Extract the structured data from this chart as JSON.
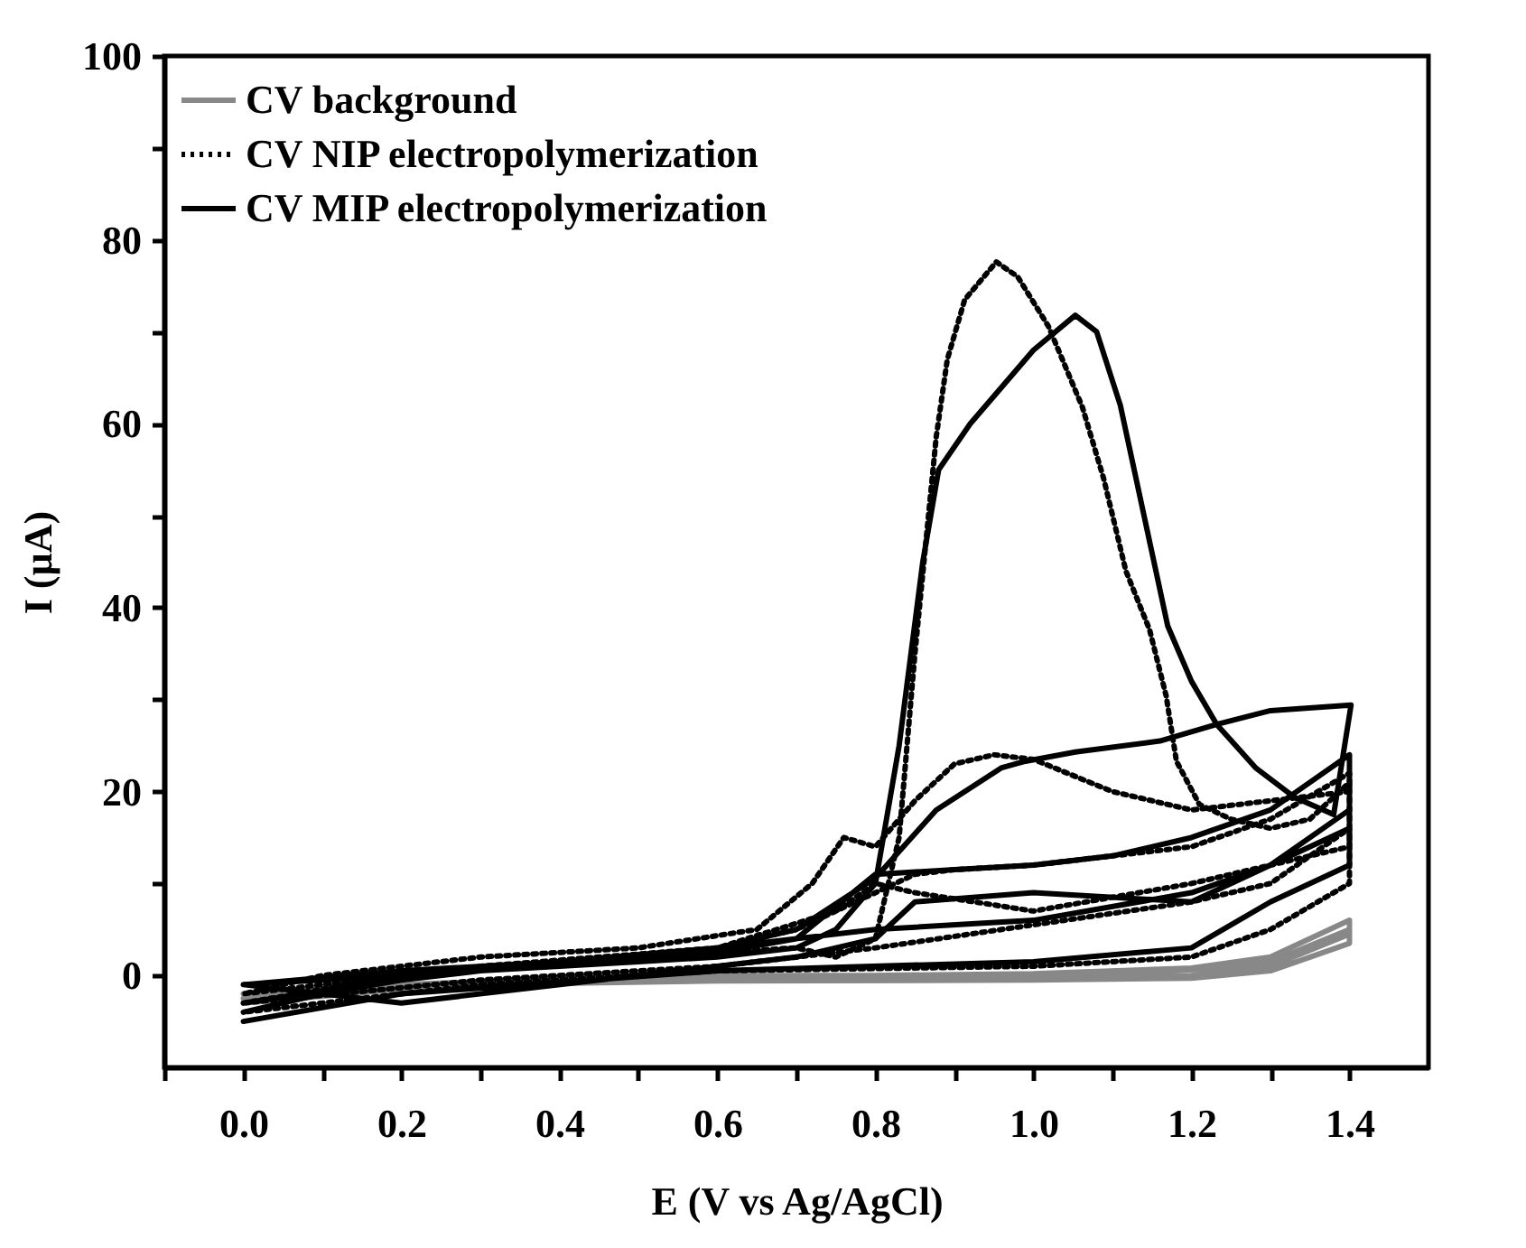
{
  "chart_data": {
    "type": "line",
    "xlabel": "E (V vs Ag/AgCl)",
    "ylabel": "I (µA)",
    "xlim": [
      -0.1,
      1.5
    ],
    "ylim": [
      -10,
      100
    ],
    "xticks": [
      {
        "value": -0.1,
        "label": null
      },
      {
        "value": 0,
        "label": "0.0"
      },
      {
        "value": 0.1,
        "label": null
      },
      {
        "value": 0.2,
        "label": "0.2"
      },
      {
        "value": 0.3,
        "label": null
      },
      {
        "value": 0.4,
        "label": "0.4"
      },
      {
        "value": 0.5,
        "label": null
      },
      {
        "value": 0.6,
        "label": "0.6"
      },
      {
        "value": 0.7,
        "label": null
      },
      {
        "value": 0.8,
        "label": "0.8"
      },
      {
        "value": 0.9,
        "label": null
      },
      {
        "value": 1.0,
        "label": "1.0"
      },
      {
        "value": 1.1,
        "label": null
      },
      {
        "value": 1.2,
        "label": "1.2"
      },
      {
        "value": 1.3,
        "label": null
      },
      {
        "value": 1.4,
        "label": "1.4"
      }
    ],
    "yticks": [
      0,
      {
        "value": 10,
        "label": null
      },
      20,
      {
        "value": 30,
        "label": null
      },
      40,
      {
        "value": 50,
        "label": null
      },
      60,
      {
        "value": 70,
        "label": null
      },
      80,
      {
        "value": 90,
        "label": null
      },
      100
    ],
    "grid": false,
    "legend": "top left",
    "series": [
      {
        "name": "CV background",
        "color": "#888888",
        "line_style": "solid",
        "x": [
          0,
          0.2,
          0.4,
          0.6,
          0.8,
          1.0,
          1.2,
          1.3,
          1.4,
          1.4,
          1.3,
          1.2,
          1.0,
          0.8,
          0.6,
          0.4,
          0.2,
          0,
          0.2,
          0.4,
          0.8,
          1.0,
          1.2,
          1.3,
          1.4,
          1.4,
          1.3,
          1.2,
          1.0,
          0.6,
          0.3,
          0
        ],
        "values": [
          -2,
          -1,
          -0.3,
          0,
          0,
          0.2,
          0.8,
          2,
          6,
          4.5,
          1,
          0,
          -0.3,
          -0.5,
          -0.5,
          -0.7,
          -1.5,
          -3,
          -1.2,
          -0.4,
          0,
          0.2,
          0.6,
          1.5,
          5,
          3.5,
          0.5,
          -0.3,
          -0.5,
          -0.6,
          -1,
          -2.5
        ]
      },
      {
        "name": "CV NIP electropolymerization",
        "color": "#000000",
        "line_style": "dotted",
        "x": [
          0,
          0.2,
          0.4,
          0.6,
          0.7,
          0.75,
          0.8,
          0.83,
          0.85,
          0.877,
          0.891,
          0.913,
          0.953,
          0.98,
          1.019,
          1.062,
          1.089,
          1.117,
          1.147,
          1.168,
          1.181,
          1.21,
          1.25,
          1.3,
          1.35,
          1.4,
          1.4,
          1.3,
          1.2,
          1.1,
          1.0,
          0.95,
          0.9,
          0.85,
          0.8,
          0.76,
          0.72,
          0.65,
          0.5,
          0.3,
          0.1,
          0,
          0.2,
          0.4,
          0.6,
          0.7,
          0.8,
          0.85,
          0.9,
          1.0,
          1.2,
          1.3,
          1.4,
          1.4,
          1.3,
          1.2,
          1.0,
          0.85,
          0.8,
          0.75,
          0.6,
          0.3,
          0,
          0.3,
          0.6,
          0.8,
          1.0,
          1.2,
          1.3,
          1.4,
          1.4,
          1.3,
          1.2,
          1.0,
          0.6,
          0.3,
          0
        ],
        "values": [
          -3,
          0,
          1.5,
          2.5,
          3,
          2,
          4,
          15,
          35,
          58.6,
          67,
          73.5,
          77.6,
          76,
          70.6,
          61.8,
          54,
          44,
          37.6,
          30.4,
          23.3,
          18.6,
          17,
          16,
          17,
          21,
          20,
          19,
          18,
          20,
          23.5,
          24,
          23,
          19,
          14,
          15,
          10,
          5,
          3,
          2,
          0,
          -2,
          0,
          1.5,
          3,
          5,
          9,
          11,
          11.5,
          12,
          14,
          17,
          22,
          14,
          12,
          10,
          7,
          9,
          10,
          7,
          3,
          1,
          -3,
          -0.5,
          1,
          3,
          5.5,
          8,
          10,
          16,
          10,
          5,
          2,
          1,
          0.5,
          -1,
          -4
        ]
      },
      {
        "name": "CV MIP electropolymerization",
        "color": "#000000",
        "line_style": "solid",
        "x": [
          0,
          0.1,
          0.2,
          0.3,
          0.4,
          0.5,
          0.6,
          0.7,
          0.75,
          0.8,
          0.83,
          0.86,
          0.88,
          0.92,
          0.96,
          1.0,
          1.053,
          1.08,
          1.11,
          1.14,
          1.17,
          1.2,
          1.232,
          1.281,
          1.33,
          1.38,
          1.402,
          1.402,
          1.3,
          1.232,
          1.16,
          1.053,
          0.99,
          0.96,
          0.877,
          0.8,
          0.7,
          0.6,
          0.4,
          0.2,
          0,
          0.2,
          0.4,
          0.6,
          0.7,
          0.8,
          0.9,
          1.0,
          1.1,
          1.2,
          1.3,
          1.4,
          1.4,
          1.3,
          1.2,
          1.0,
          0.85,
          0.8,
          0.7,
          0.5,
          0.2,
          0,
          0.3,
          0.6,
          0.8,
          1.0,
          1.2,
          1.3,
          1.4,
          1.4,
          1.3,
          1.2,
          1.0,
          0.6,
          0.2,
          0
        ],
        "values": [
          -4,
          -2,
          -0.5,
          0.5,
          1,
          1.5,
          2,
          3,
          5,
          10,
          25,
          45,
          55,
          60,
          64,
          68,
          71.8,
          70,
          62,
          50,
          38,
          32,
          27.3,
          22.6,
          19.4,
          17.5,
          29.4,
          29.4,
          28.8,
          27.3,
          25.5,
          24.3,
          23.3,
          22.6,
          18,
          10.6,
          5,
          3,
          1.5,
          0.5,
          -1,
          0.5,
          1.5,
          2.5,
          4,
          11,
          11.5,
          12,
          13,
          15,
          18,
          24,
          16,
          12,
          8,
          9,
          8,
          4,
          2,
          0,
          -3,
          -1,
          0.5,
          3,
          5,
          6,
          9,
          12,
          18,
          12,
          8,
          3,
          1.5,
          0.5,
          -2,
          -5
        ]
      }
    ]
  }
}
